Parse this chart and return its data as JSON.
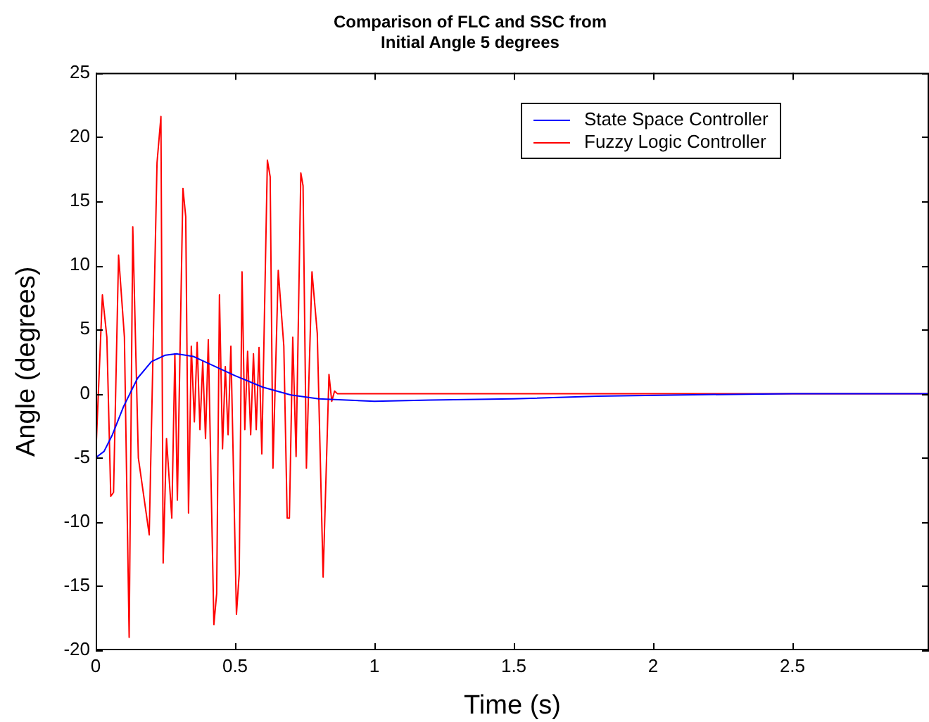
{
  "chart_data": {
    "type": "line",
    "title": "Comparison of FLC and SSC from\nInitial Angle 5 degrees",
    "xlabel": "Time (s)",
    "ylabel": "Angle (degrees)",
    "xlim": [
      0,
      2.99
    ],
    "xticks": [
      0,
      0.5,
      1,
      1.5,
      2,
      2.5
    ],
    "ylim": [
      -20,
      25
    ],
    "yticks": [
      -20,
      -15,
      -10,
      -5,
      0,
      5,
      10,
      15,
      20,
      25
    ],
    "grid": false,
    "legend": "top right",
    "marker": "none",
    "line_style": "solid",
    "series": [
      {
        "name": "State Space Controller",
        "color": "#0000ff",
        "x": [
          0,
          0.03,
          0.06,
          0.1,
          0.15,
          0.2,
          0.25,
          0.29,
          0.35,
          0.4,
          0.5,
          0.6,
          0.7,
          0.8,
          0.9,
          1.0,
          1.2,
          1.5,
          1.8,
          2.1,
          2.5,
          2.99
        ],
        "values": [
          -5,
          -4.5,
          -3.2,
          -1.0,
          1.2,
          2.5,
          3.0,
          3.1,
          2.9,
          2.4,
          1.4,
          0.5,
          -0.1,
          -0.4,
          -0.5,
          -0.6,
          -0.5,
          -0.4,
          -0.2,
          -0.1,
          0,
          0
        ]
      },
      {
        "name": "Fuzzy Logic Controller",
        "color": "#ff0000",
        "x": [
          0,
          0.024,
          0.04,
          0.054,
          0.064,
          0.082,
          0.103,
          0.12,
          0.133,
          0.153,
          0.192,
          0.22,
          0.234,
          0.242,
          0.254,
          0.273,
          0.284,
          0.293,
          0.313,
          0.323,
          0.333,
          0.343,
          0.354,
          0.364,
          0.374,
          0.384,
          0.394,
          0.404,
          0.424,
          0.434,
          0.444,
          0.455,
          0.465,
          0.475,
          0.485,
          0.505,
          0.515,
          0.525,
          0.535,
          0.545,
          0.556,
          0.566,
          0.576,
          0.586,
          0.596,
          0.616,
          0.626,
          0.636,
          0.655,
          0.675,
          0.687,
          0.695,
          0.707,
          0.719,
          0.736,
          0.744,
          0.756,
          0.776,
          0.795,
          0.816,
          0.837,
          0.847,
          0.857,
          0.867,
          2.99
        ],
        "values": [
          -5,
          7.7,
          4.4,
          -8.0,
          -7.7,
          10.8,
          4.4,
          -19.0,
          13.0,
          -5,
          -11,
          18,
          21.6,
          -13.2,
          -3.5,
          -9.7,
          3.1,
          -8.3,
          16,
          13.8,
          -9.3,
          3.7,
          -2.2,
          4.0,
          -2.8,
          2.5,
          -3.5,
          4.2,
          -18,
          -15.6,
          7.7,
          -4.3,
          2.1,
          -3.2,
          3.7,
          -17.2,
          -14,
          9.5,
          -2.8,
          3.3,
          -3.2,
          3.1,
          -2.8,
          3.6,
          -4.7,
          18.2,
          16.9,
          -5.8,
          9.6,
          3.7,
          -9.7,
          -9.7,
          4.4,
          -4.9,
          17.2,
          16.2,
          -5.8,
          9.5,
          4.7,
          -14.3,
          1.5,
          -0.6,
          0.2,
          0,
          0
        ]
      }
    ]
  }
}
